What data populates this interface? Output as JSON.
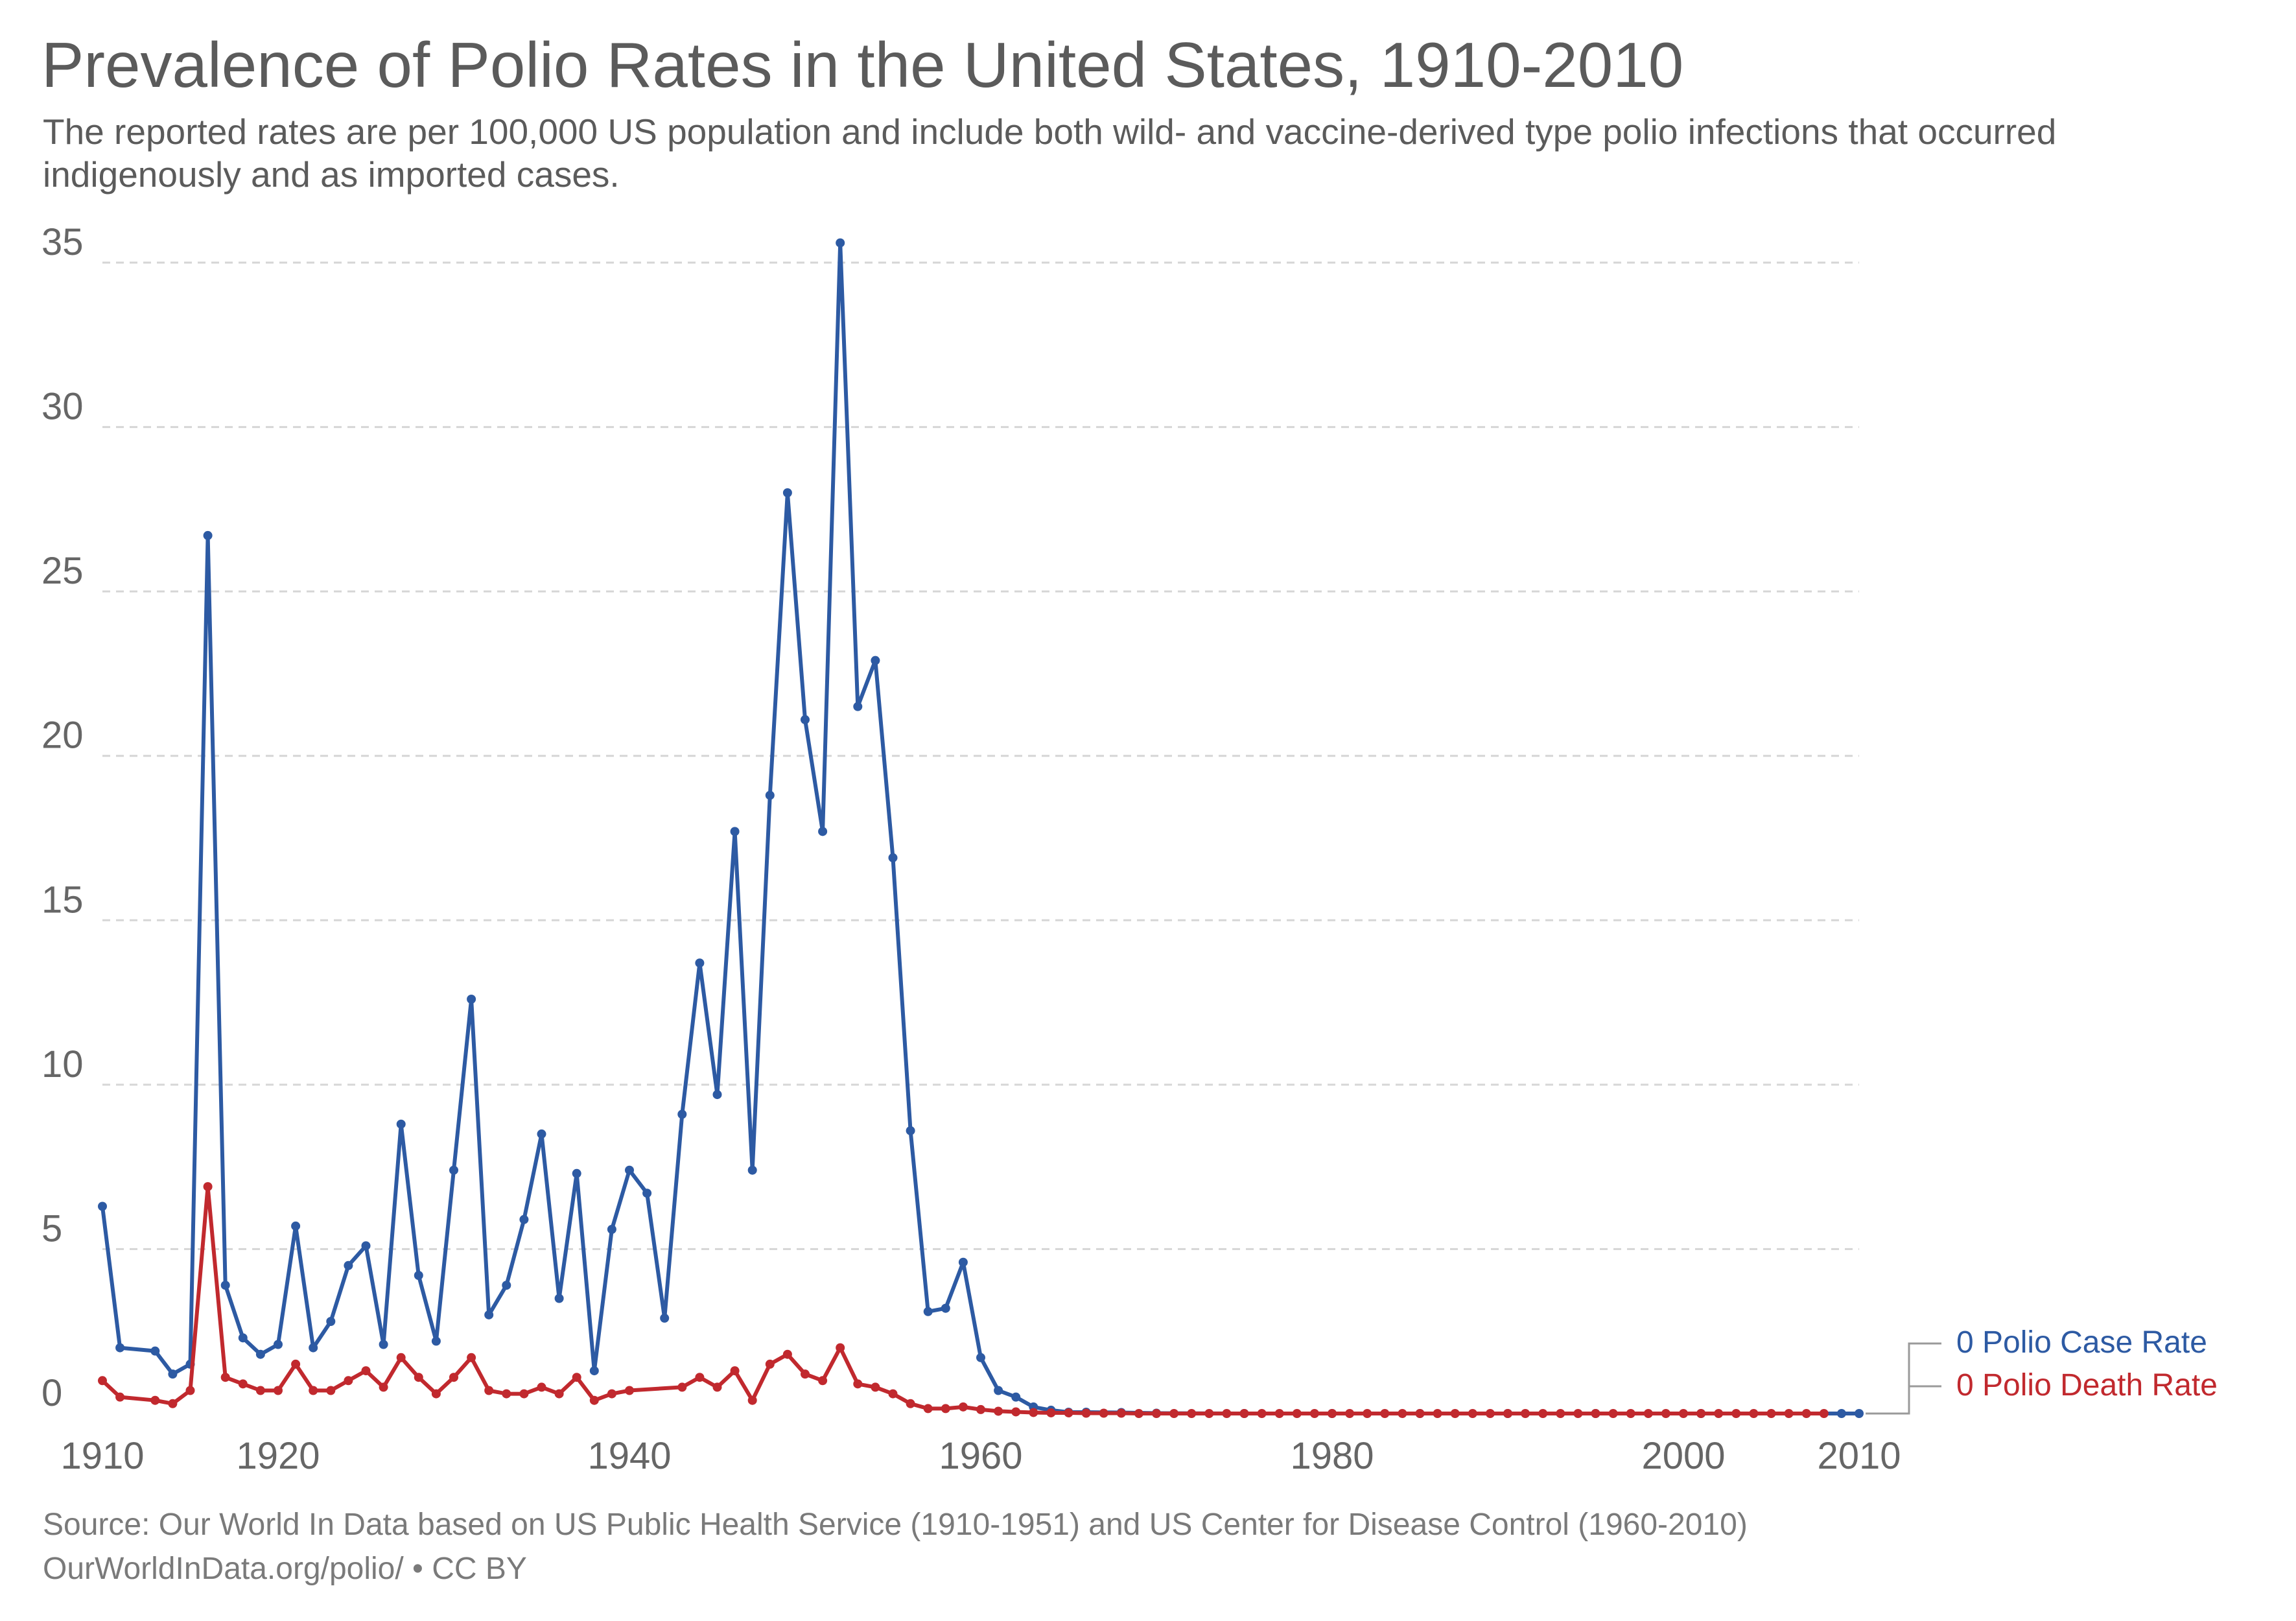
{
  "chart_data": {
    "type": "line",
    "title": "Prevalence of Polio Rates in the United States, 1910-2010",
    "subtitle": "The reported rates are per 100,000 US population and include both wild- and vaccine-derived type polio infections that occurred indigenously and as imported cases.",
    "xlabel": "",
    "ylabel": "",
    "xlim": [
      1910,
      2010
    ],
    "ylim": [
      0,
      35
    ],
    "x_ticks": [
      1910,
      1920,
      1940,
      1960,
      1980,
      2000,
      2010
    ],
    "y_ticks": [
      0,
      5,
      10,
      15,
      20,
      25,
      30,
      35
    ],
    "grid": true,
    "legend_position": "right",
    "series": [
      {
        "name": "Polio Case Rate",
        "legend_label": "0 Polio Case Rate",
        "color": "#2d5aa3",
        "x": [
          1910,
          1911,
          1913,
          1914,
          1915,
          1916,
          1917,
          1918,
          1919,
          1920,
          1921,
          1922,
          1923,
          1924,
          1925,
          1926,
          1927,
          1928,
          1929,
          1930,
          1931,
          1932,
          1933,
          1934,
          1935,
          1936,
          1937,
          1938,
          1939,
          1940,
          1941,
          1942,
          1943,
          1944,
          1945,
          1946,
          1947,
          1948,
          1949,
          1950,
          1951,
          1952,
          1953,
          1954,
          1955,
          1956,
          1957,
          1958,
          1959,
          1960,
          1961,
          1962,
          1963,
          1964,
          1965,
          1966,
          1968,
          1970,
          1975,
          1980,
          1985,
          1990,
          1995,
          2001,
          2009,
          2010
        ],
        "y": [
          6.3,
          2.0,
          1.9,
          1.2,
          1.5,
          26.7,
          3.9,
          2.3,
          1.8,
          2.1,
          5.7,
          2.0,
          2.8,
          4.5,
          5.1,
          2.1,
          8.8,
          4.2,
          2.2,
          7.4,
          12.6,
          3.0,
          3.9,
          5.9,
          8.5,
          3.5,
          7.3,
          1.3,
          5.6,
          7.4,
          6.7,
          2.9,
          9.1,
          13.7,
          9.7,
          17.7,
          7.4,
          18.8,
          28.0,
          21.1,
          17.7,
          35.6,
          21.5,
          22.9,
          16.9,
          8.6,
          3.1,
          3.2,
          4.6,
          1.7,
          0.7,
          0.5,
          0.2,
          0.1,
          0.04,
          0.04,
          0.03,
          0.01,
          0,
          0,
          0,
          0,
          0,
          0,
          0,
          0
        ]
      },
      {
        "name": "Polio Death Rate",
        "legend_label": "0 Polio Death Rate",
        "color": "#c1292e",
        "x": [
          1910,
          1911,
          1913,
          1914,
          1915,
          1916,
          1917,
          1918,
          1919,
          1920,
          1921,
          1922,
          1923,
          1924,
          1925,
          1926,
          1927,
          1928,
          1929,
          1930,
          1931,
          1932,
          1933,
          1934,
          1935,
          1936,
          1937,
          1938,
          1939,
          1940,
          1943,
          1944,
          1945,
          1946,
          1947,
          1948,
          1949,
          1950,
          1951,
          1952,
          1953,
          1954,
          1955,
          1956,
          1957,
          1958,
          1959,
          1960,
          1961,
          1962,
          1963,
          1964,
          1965,
          1966,
          1967,
          1968,
          1969,
          1970,
          1971,
          1972,
          1973,
          1974,
          1975,
          1976,
          1977,
          1978,
          1979,
          1980,
          1981,
          1982,
          1983,
          1984,
          1985,
          1986,
          1987,
          1988,
          1989,
          1990,
          1991,
          1992,
          1993,
          1994,
          1995,
          1996,
          1997,
          1998,
          1999,
          2000,
          2001,
          2002,
          2003,
          2004,
          2005,
          2006,
          2007,
          2008
        ],
        "y": [
          1.0,
          0.5,
          0.4,
          0.3,
          0.7,
          6.9,
          1.1,
          0.9,
          0.7,
          0.7,
          1.5,
          0.7,
          0.7,
          1.0,
          1.3,
          0.8,
          1.7,
          1.1,
          0.6,
          1.1,
          1.7,
          0.7,
          0.6,
          0.6,
          0.8,
          0.6,
          1.1,
          0.4,
          0.6,
          0.7,
          0.8,
          1.1,
          0.8,
          1.3,
          0.4,
          1.5,
          1.8,
          1.2,
          1.0,
          2.0,
          0.9,
          0.8,
          0.6,
          0.3,
          0.15,
          0.15,
          0.2,
          0.12,
          0.07,
          0.05,
          0.03,
          0.02,
          0.02,
          0.01,
          0.01,
          0.01,
          0,
          0,
          0,
          0,
          0,
          0,
          0,
          0,
          0,
          0,
          0,
          0,
          0,
          0,
          0,
          0,
          0,
          0,
          0,
          0,
          0,
          0,
          0,
          0,
          0,
          0,
          0,
          0,
          0,
          0,
          0,
          0,
          0,
          0,
          0,
          0,
          0,
          0,
          0,
          0
        ]
      }
    ]
  },
  "source": "Source: Our World In Data based on US Public Health Service (1910-1951) and US Center for Disease Control (1960-2010)",
  "site": "OurWorldInData.org/polio/ • CC BY"
}
